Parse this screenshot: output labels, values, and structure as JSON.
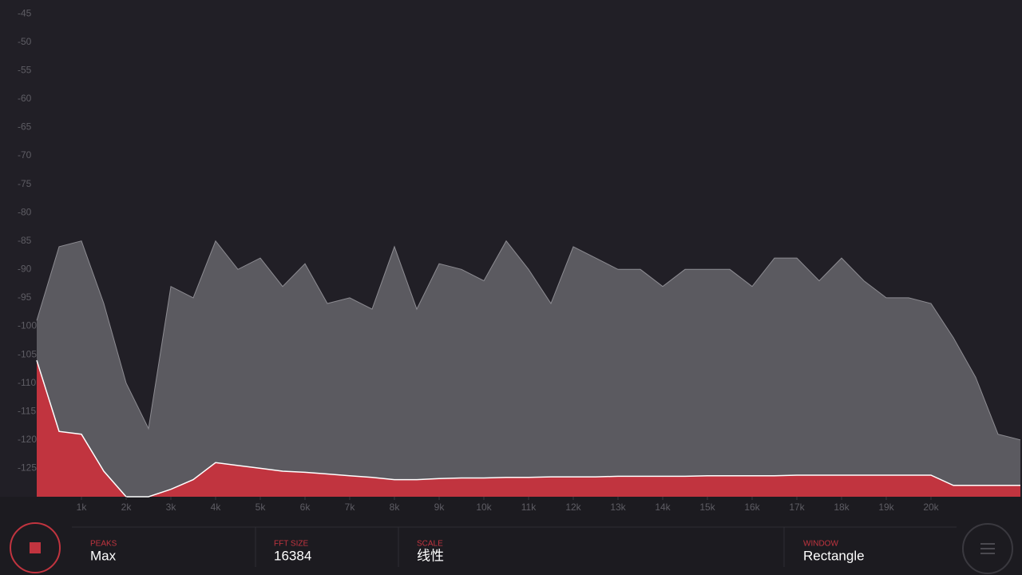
{
  "chart_data": {
    "type": "area",
    "xlim": [
      0,
      22000
    ],
    "ylim": [
      -130,
      -42.6
    ],
    "xticks": [
      {
        "value": 1000,
        "label": "1k"
      },
      {
        "value": 2000,
        "label": "2k"
      },
      {
        "value": 3000,
        "label": "3k"
      },
      {
        "value": 4000,
        "label": "4k"
      },
      {
        "value": 5000,
        "label": "5k"
      },
      {
        "value": 6000,
        "label": "6k"
      },
      {
        "value": 7000,
        "label": "7k"
      },
      {
        "value": 8000,
        "label": "8k"
      },
      {
        "value": 9000,
        "label": "9k"
      },
      {
        "value": 10000,
        "label": "10k"
      },
      {
        "value": 11000,
        "label": "11k"
      },
      {
        "value": 12000,
        "label": "12k"
      },
      {
        "value": 13000,
        "label": "13k"
      },
      {
        "value": 14000,
        "label": "14k"
      },
      {
        "value": 15000,
        "label": "15k"
      },
      {
        "value": 16000,
        "label": "16k"
      },
      {
        "value": 17000,
        "label": "17k"
      },
      {
        "value": 18000,
        "label": "18k"
      },
      {
        "value": 19000,
        "label": "19k"
      },
      {
        "value": 20000,
        "label": "20k"
      }
    ],
    "yticks": [
      -45,
      -50,
      -55,
      -60,
      -65,
      -70,
      -75,
      -80,
      -85,
      -90,
      -95,
      -100,
      -105,
      -110,
      -115,
      -120,
      -125
    ],
    "grid": false,
    "x": [
      0,
      500,
      1000,
      1500,
      2000,
      2500,
      3000,
      3500,
      4000,
      4500,
      5000,
      5500,
      6000,
      6500,
      7000,
      7500,
      8000,
      8500,
      9000,
      9500,
      10000,
      10500,
      11000,
      11500,
      12000,
      12500,
      13000,
      13500,
      14000,
      14500,
      15000,
      15500,
      16000,
      16500,
      17000,
      17500,
      18000,
      18500,
      19000,
      19500,
      20000,
      20500,
      21000,
      21500,
      22000
    ],
    "series": [
      {
        "color": "#5b5a60",
        "values": [
          -99,
          -86,
          -85,
          -96,
          -110,
          -118,
          -93,
          -95,
          -85,
          -90,
          -88,
          -93,
          -89,
          -96,
          -95,
          -97,
          -86,
          -97,
          -89,
          -90,
          -92,
          -85,
          -90,
          -96,
          -86,
          -88,
          -90,
          -90,
          -93,
          -90,
          -90,
          -90,
          -93,
          -88,
          -88,
          -92,
          -88,
          -92,
          -95,
          -95,
          -96,
          -102,
          -109,
          -119,
          -120
        ]
      },
      {
        "color": "#c1343f",
        "values": [
          -106,
          -118.5,
          -119,
          -125.5,
          -130,
          -130,
          -128.7,
          -127,
          -124,
          -124.5,
          -125,
          -125.5,
          -125.7,
          -126,
          -126.3,
          -126.6,
          -127,
          -127,
          -126.8,
          -126.7,
          -126.7,
          -126.6,
          -126.6,
          -126.5,
          -126.5,
          -126.5,
          -126.4,
          -126.4,
          -126.4,
          -126.4,
          -126.3,
          -126.3,
          -126.3,
          -126.3,
          -126.2,
          -126.2,
          -126.2,
          -126.2,
          -126.2,
          -126.2,
          -126.2,
          -128,
          -128,
          -128,
          -128
        ]
      }
    ]
  },
  "controls": [
    {
      "label": "PEAKS",
      "value": "Max"
    },
    {
      "label": "FFT SIZE",
      "value": "16384"
    },
    {
      "label": "SCALE",
      "value": "线性"
    },
    {
      "label": "WINDOW",
      "value": "Rectangle"
    }
  ]
}
